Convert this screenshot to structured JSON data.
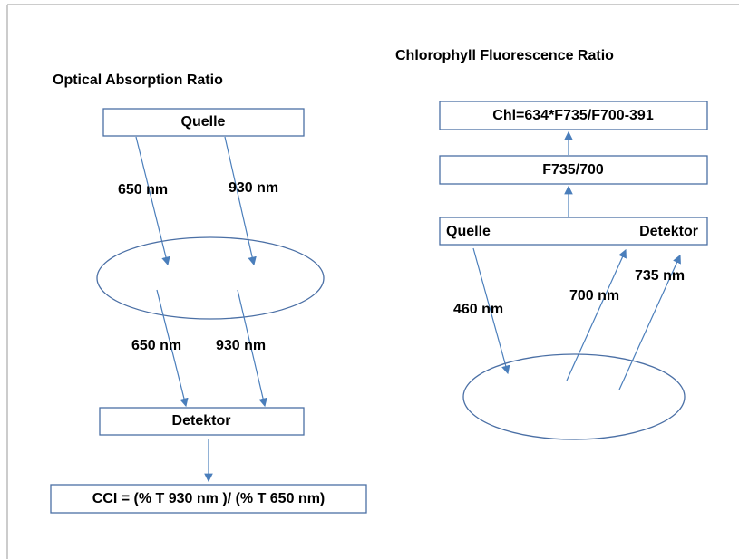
{
  "left": {
    "title": "Optical Absorption  Ratio",
    "source": "Quelle",
    "incoming_labels": [
      "650 nm",
      "930 nm"
    ],
    "outgoing_labels": [
      "650 nm",
      "930 nm"
    ],
    "detector": "Detektor",
    "formula": "CCI = (% T 930 nm )/ (% T 650 nm)"
  },
  "right": {
    "title": "Chlorophyll Fluorescence Ratio",
    "formula": "Chl=634*F735/F700-391",
    "ratio": "F735/700",
    "source": "Quelle",
    "detector": "Detektor",
    "wave_labels": [
      "460 nm",
      "700 nm",
      "735 nm"
    ]
  }
}
